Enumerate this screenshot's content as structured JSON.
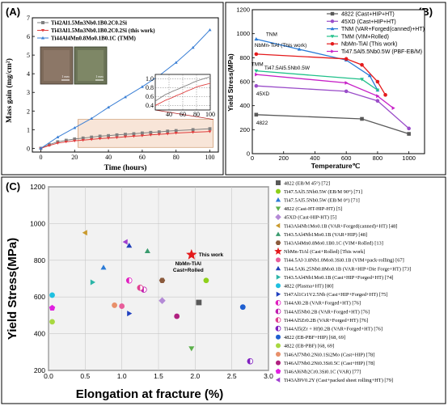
{
  "chart_data": [
    {
      "panel": "(A)",
      "type": "line",
      "xlabel": "Time (hours)",
      "ylabel": "Mass gain (mg/cm²)",
      "xlim": [
        -5,
        105
      ],
      "ylim": [
        -0.2,
        7
      ],
      "xticks": [
        0,
        20,
        40,
        60,
        80,
        100
      ],
      "yticks": [
        0,
        1,
        2,
        3,
        4,
        5,
        6,
        7
      ],
      "legend_position": "top-left",
      "series": [
        {
          "name": "Ti42Al1.5Mn3Nb0.1B0.2C0.2Si",
          "color": "#808080",
          "marker": "square",
          "x": [
            0,
            5,
            10,
            15,
            20,
            25,
            30,
            35,
            40,
            45,
            50,
            55,
            60,
            65,
            70,
            75,
            80,
            90,
            100
          ],
          "y": [
            0,
            0.2,
            0.35,
            0.43,
            0.5,
            0.55,
            0.6,
            0.65,
            0.68,
            0.72,
            0.75,
            0.78,
            0.82,
            0.85,
            0.88,
            0.92,
            0.95,
            1.0,
            1.05
          ]
        },
        {
          "name": "Ti43Al1.5Mn3Nb0.1B0.2C0.2Si (this work)",
          "color": "#e03c3c",
          "marker": "triangle-down",
          "x": [
            0,
            5,
            10,
            15,
            20,
            25,
            30,
            35,
            40,
            45,
            50,
            55,
            60,
            65,
            70,
            75,
            80,
            90,
            100
          ],
          "y": [
            0,
            0.15,
            0.28,
            0.35,
            0.4,
            0.44,
            0.48,
            0.52,
            0.55,
            0.58,
            0.62,
            0.65,
            0.68,
            0.72,
            0.75,
            0.78,
            0.82,
            0.86,
            0.9
          ]
        },
        {
          "name": "Ti44Al4Mn0.8Mo0.1B0.1C (TMM)",
          "color": "#3a7fd5",
          "marker": "triangle-up",
          "x": [
            0,
            10,
            20,
            30,
            40,
            50,
            60,
            70,
            80,
            90,
            100
          ],
          "y": [
            0,
            0.6,
            1.1,
            1.6,
            2.2,
            2.75,
            3.3,
            3.9,
            4.6,
            5.4,
            6.35
          ]
        }
      ],
      "inset": {
        "xticks": [
          40,
          60,
          80,
          100
        ],
        "yticks": [
          0.4,
          0.6,
          0.8,
          1.0
        ],
        "xlim": [
          20,
          100
        ],
        "ylim": [
          0.3,
          1.1
        ]
      },
      "photo_scale_labels": [
        "1 mm",
        "1 mm"
      ]
    },
    {
      "panel": "(B)",
      "type": "line",
      "xlabel": "Temperature℃",
      "ylabel": "Yield Stress(MPa)",
      "xlim": [
        0,
        1100
      ],
      "ylim": [
        0,
        1200
      ],
      "xticks": [
        0,
        200,
        400,
        600,
        800,
        1000
      ],
      "yticks": [
        0,
        200,
        400,
        600,
        800,
        1000,
        1200
      ],
      "legend_position": "top-right",
      "series": [
        {
          "name": "4822",
          "legend": "4822 (Cast+HIP+HT)",
          "color": "#595959",
          "marker": "square",
          "label": "4822",
          "x": [
            25,
            700,
            1000
          ],
          "y": [
            325,
            290,
            165
          ]
        },
        {
          "name": "45XD",
          "legend": "45XD (Cast+HIP+HT)",
          "color": "#9a4dc9",
          "marker": "circle",
          "label": "45XD",
          "x": [
            25,
            600,
            800,
            1000
          ],
          "y": [
            565,
            520,
            440,
            210
          ]
        },
        {
          "name": "TNM",
          "legend": "TNM (VAR+Forged(canned)+HT)",
          "color": "#2a7ad6",
          "marker": "triangle-up",
          "label": "TNM",
          "x": [
            25,
            300,
            600,
            750,
            800
          ],
          "y": [
            955,
            870,
            780,
            650,
            530
          ]
        },
        {
          "name": "TMM",
          "legend": "TMM (VIM+Rolled)",
          "color": "#20c08a",
          "marker": "triangle-down",
          "label": "TMM",
          "x": [
            25,
            700,
            800
          ],
          "y": [
            690,
            620,
            530
          ]
        },
        {
          "name": "NbMn-TiAl",
          "legend": "NbMn-TiAl (This work)",
          "color": "#e41a1c",
          "marker": "circle",
          "label": "NbMn-TiAl (This work)",
          "x": [
            25,
            600,
            700,
            800,
            850
          ],
          "y": [
            830,
            790,
            740,
            600,
            490
          ]
        },
        {
          "name": "Ti47.5Al5.5Nb0.5W",
          "legend": "Ti47.5Al5.5Nb0.5W (PBF-EB/M)",
          "color": "#c71fc7",
          "marker": "triangle-right",
          "label": "Ti47.5Al5.5Nb0.5W",
          "x": [
            25,
            600,
            800,
            900
          ],
          "y": [
            660,
            590,
            480,
            380
          ]
        }
      ]
    },
    {
      "panel": "(C)",
      "type": "scatter",
      "xlabel": "Elongation at fracture (%)",
      "ylabel": "Yield Stress(MPa)",
      "xlim": [
        0,
        3.0
      ],
      "ylim": [
        200,
        1200
      ],
      "xticks": [
        0.0,
        0.5,
        1.0,
        1.5,
        2.0,
        2.5,
        3.0
      ],
      "yticks": [
        200,
        400,
        600,
        800,
        1000,
        1200
      ],
      "grid": true,
      "legend_position": "right",
      "highlight": {
        "label": "This work",
        "annotation": "NbMn-TiAl Cast+Rolled",
        "x": 1.95,
        "y": 830
      },
      "points": [
        {
          "legend": "4822 (EB/M 45°) [72]",
          "color": "#595959",
          "marker": "square",
          "x": 2.05,
          "y": 570
        },
        {
          "legend": "Ti47.5Al5.5Nb0.5W (EB/M 90°) [71]",
          "color": "#8ed01a",
          "marker": "circle",
          "x": 2.15,
          "y": 690
        },
        {
          "legend": "Ti47.5Al5.5Nb0.5W (EB/M 0°) [71]",
          "color": "#2a7ad6",
          "marker": "triangle-up",
          "x": 0.75,
          "y": 760
        },
        {
          "legend": "4822 (Cast-HT-HIP-HT) [5]",
          "color": "#5bb04a",
          "marker": "triangle-down",
          "x": 1.95,
          "y": 320
        },
        {
          "legend": "45XD (Cast-HIP-HT) [5]",
          "color": "#b48ad6",
          "marker": "diamond",
          "x": 1.55,
          "y": 580
        },
        {
          "legend": "Ti43Al4Nb1Mo0.1B (VAR+Forged(canned)+HT) [48]",
          "color": "#c99a2e",
          "marker": "triangle-left",
          "x": 0.5,
          "y": 950
        },
        {
          "legend": "Ti43.5Al4Nb1Mo0.1B (VAR+HIP) [48]",
          "color": "#3a9b6e",
          "marker": "triangle-up",
          "x": 1.35,
          "y": 850
        },
        {
          "legend": "Ti43Al4Mn0.8Mo0.1B0.1C (VIM+Rolled) [13]",
          "color": "#8b5a3c",
          "marker": "hexagon",
          "x": 1.55,
          "y": 690
        },
        {
          "legend": "NbMn-TiAl (Cast+Rolled) [This work]",
          "color": "#e41a1c",
          "marker": "star",
          "x": 1.95,
          "y": 830
        },
        {
          "legend": "Ti44.5Al-3.8Nb1.0Mo0.3Si0.1B (VIM+pack-rolling) [67]",
          "color": "#e85d9a",
          "marker": "circle",
          "x": 1.0,
          "y": 550
        },
        {
          "legend": "Ti44.5Al6.25Nb0.8Mo0.1B (VAR+HIP+Die Forge+HT) [73]",
          "color": "#1f3fb8",
          "marker": "triangle-up",
          "x": 1.1,
          "y": 880
        },
        {
          "legend": "Ti43.5Al4Nb1Mo0.1B (Cast+HIP+Forged+HT) [74]",
          "color": "#2bb5a8",
          "marker": "triangle-right",
          "x": 0.6,
          "y": 680
        },
        {
          "legend": "4822 (Plasma+HT) [80]",
          "color": "#1fc0e0",
          "marker": "circle",
          "x": 0.05,
          "y": 610
        },
        {
          "legend": "Ti47Al1Cr1V2.5Nb (Cast+HIP+Forged+HT) [75]",
          "color": "#2040c0",
          "marker": "triangle-right",
          "x": 1.1,
          "y": 510
        },
        {
          "legend": "Ti44Al0.2B (VAR+Forged+HT) [76]",
          "color": "#e020c0",
          "marker": "half-circle",
          "x": 1.1,
          "y": 690
        },
        {
          "legend": "Ti44Al5Nb0.2B (VAR+Forged+HT) [76]",
          "color": "#c020b0",
          "marker": "half-circle",
          "x": 1.3,
          "y": 640
        },
        {
          "legend": "Ti44Al5Zr0.2B (VAR+Forged+HT) [76]",
          "color": "#e04090",
          "marker": "half-circle",
          "x": 1.25,
          "y": 650
        },
        {
          "legend": "Ti44Al5(Zr + Hf)0.2B (VAR+Forged+HT) [76]",
          "color": "#8020c0",
          "marker": "half-circle",
          "x": 2.75,
          "y": 250
        },
        {
          "legend": "4822 (EB-PBF+HIP) [68, 69]",
          "color": "#1f5fd0",
          "marker": "circle",
          "x": 2.65,
          "y": 545
        },
        {
          "legend": "4822 (EB-PBF) [68, 69]",
          "color": "#a8d840",
          "marker": "circle",
          "x": 0.05,
          "y": 465
        },
        {
          "legend": "Ti46Al7Nb0.2Ni0.1Si2Mo (Cast+HIP) [78]",
          "color": "#e8906a",
          "marker": "circle",
          "x": 0.9,
          "y": 555
        },
        {
          "legend": "Ti46Al7Nb0.2Ni0.3Si0.5C (Cast+HIP) [78]",
          "color": "#b02080",
          "marker": "circle",
          "x": 1.75,
          "y": 495
        },
        {
          "legend": "Ti46Al6Nb2Cr0.3Si0.1C (VAR) [77]",
          "color": "#e020e0",
          "marker": "pentagon",
          "x": 0.05,
          "y": 540
        },
        {
          "legend": "Ti43Al9V0.2Y (Cast+packed sheet rolling+HT) [79]",
          "color": "#a040d0",
          "marker": "triangle-left",
          "x": 1.05,
          "y": 900
        }
      ]
    }
  ]
}
